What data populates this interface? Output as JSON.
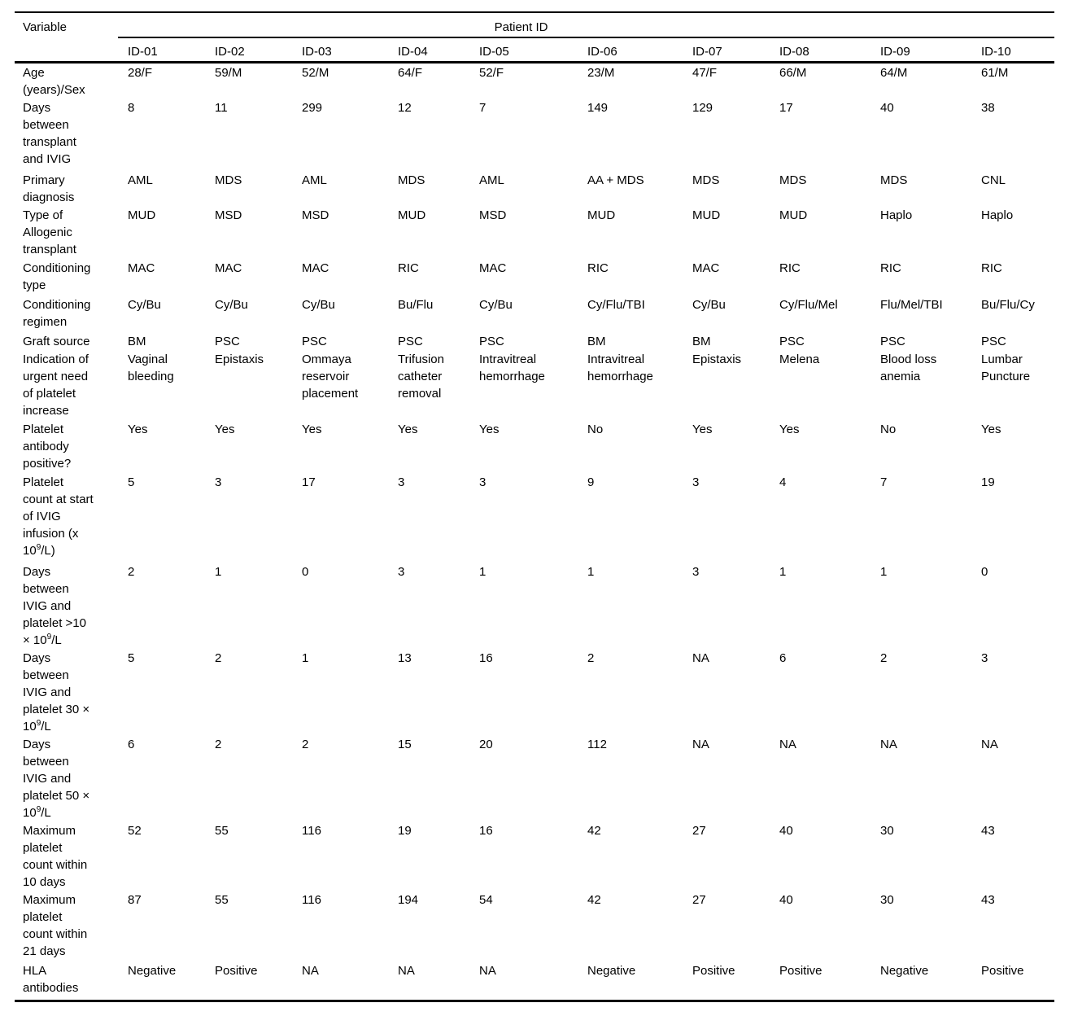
{
  "page": {
    "background_color": "#ffffff",
    "text_color": "#000000",
    "rule_color": "#000000"
  },
  "table": {
    "variable_column_header": "Variable",
    "group_header": "Patient ID",
    "columns": [
      "ID-01",
      "ID-02",
      "ID-03",
      "ID-04",
      "ID-05",
      "ID-06",
      "ID-07",
      "ID-08",
      "ID-09",
      "ID-10"
    ],
    "rows": [
      {
        "label": {
          "pre": "Age\n(years)/Sex",
          "sup": "",
          "post": ""
        },
        "values": [
          "28/F",
          "59/M",
          "52/M",
          "64/F",
          "52/F",
          "23/M",
          "47/F",
          "66/M",
          "64/M",
          "61/M"
        ]
      },
      {
        "label": {
          "pre": "Days\nbetween\ntransplant\nand IVIG",
          "sup": "",
          "post": ""
        },
        "values": [
          "8",
          "11",
          "299",
          "12",
          "7",
          "149",
          "129",
          "17",
          "40",
          "38"
        ]
      },
      {
        "label": {
          "pre": "Primary\ndiagnosis",
          "sup": "",
          "post": ""
        },
        "values": [
          "AML",
          "MDS",
          "AML",
          "MDS",
          "AML",
          "AA + MDS",
          "MDS",
          "MDS",
          "MDS",
          "CNL"
        ]
      },
      {
        "label": {
          "pre": "Type of\nAllogenic\ntransplant",
          "sup": "",
          "post": ""
        },
        "values": [
          "MUD",
          "MSD",
          "MSD",
          "MUD",
          "MSD",
          "MUD",
          "MUD",
          "MUD",
          "Haplo",
          "Haplo"
        ]
      },
      {
        "label": {
          "pre": "Conditioning\ntype",
          "sup": "",
          "post": ""
        },
        "values": [
          "MAC",
          "MAC",
          "MAC",
          "RIC",
          "MAC",
          "RIC",
          "MAC",
          "RIC",
          "RIC",
          "RIC"
        ]
      },
      {
        "label": {
          "pre": "Conditioning\nregimen",
          "sup": "",
          "post": ""
        },
        "values": [
          "Cy/Bu",
          "Cy/Bu",
          "Cy/Bu",
          "Bu/Flu",
          "Cy/Bu",
          "Cy/Flu/TBI",
          "Cy/Bu",
          "Cy/Flu/Mel",
          "Flu/Mel/TBI",
          "Bu/Flu/Cy"
        ]
      },
      {
        "label": {
          "pre": "Graft source",
          "sup": "",
          "post": ""
        },
        "values": [
          "BM",
          "PSC",
          "PSC",
          "PSC",
          "PSC",
          "BM",
          "BM",
          "PSC",
          "PSC",
          "PSC"
        ]
      },
      {
        "label": {
          "pre": "Indication of\nurgent need\nof platelet\nincrease",
          "sup": "",
          "post": ""
        },
        "values": [
          "Vaginal\nbleeding",
          "Epistaxis",
          "Ommaya\nreservoir\nplacement",
          "Trifusion\ncatheter\nremoval",
          "Intravitreal\nhemorrhage",
          "Intravitreal\nhemorrhage",
          "Epistaxis",
          "Melena",
          "Blood loss\nanemia",
          "Lumbar\nPuncture"
        ]
      },
      {
        "label": {
          "pre": "Platelet\nantibody\npositive?",
          "sup": "",
          "post": ""
        },
        "values": [
          "Yes",
          "Yes",
          "Yes",
          "Yes",
          "Yes",
          "No",
          "Yes",
          "Yes",
          "No",
          "Yes"
        ]
      },
      {
        "label": {
          "pre": "Platelet\ncount at start\nof IVIG\ninfusion (x\n10",
          "sup": "9",
          "post": "/L)"
        },
        "values": [
          "5",
          "3",
          "17",
          "3",
          "3",
          "9",
          "3",
          "4",
          "7",
          "19"
        ]
      },
      {
        "label": {
          "pre": "Days\nbetween\nIVIG and\nplatelet >10\n× 10",
          "sup": "9",
          "post": "/L"
        },
        "values": [
          "2",
          "1",
          "0",
          "3",
          "1",
          "1",
          "3",
          "1",
          "1",
          "0"
        ]
      },
      {
        "label": {
          "pre": "Days\nbetween\nIVIG and\nplatelet 30 ×\n10",
          "sup": "9",
          "post": "/L"
        },
        "values": [
          "5",
          "2",
          "1",
          "13",
          "16",
          "2",
          "NA",
          "6",
          "2",
          "3"
        ]
      },
      {
        "label": {
          "pre": "Days\nbetween\nIVIG and\nplatelet 50 ×\n10",
          "sup": "9",
          "post": "/L"
        },
        "values": [
          "6",
          "2",
          "2",
          "15",
          "20",
          "112",
          "NA",
          "NA",
          "NA",
          "NA"
        ]
      },
      {
        "label": {
          "pre": "Maximum\nplatelet\ncount within\n10 days",
          "sup": "",
          "post": ""
        },
        "values": [
          "52",
          "55",
          "116",
          "19",
          "16",
          "42",
          "27",
          "40",
          "30",
          "43"
        ]
      },
      {
        "label": {
          "pre": "Maximum\nplatelet\ncount within\n21 days",
          "sup": "",
          "post": ""
        },
        "values": [
          "87",
          "55",
          "116",
          "194",
          "54",
          "42",
          "27",
          "40",
          "30",
          "43"
        ]
      },
      {
        "label": {
          "pre": "HLA\nantibodies",
          "sup": "",
          "post": ""
        },
        "values": [
          "Negative",
          "Positive",
          "NA",
          "NA",
          "NA",
          "Negative",
          "Positive",
          "Positive",
          "Negative",
          "Positive"
        ]
      }
    ]
  }
}
